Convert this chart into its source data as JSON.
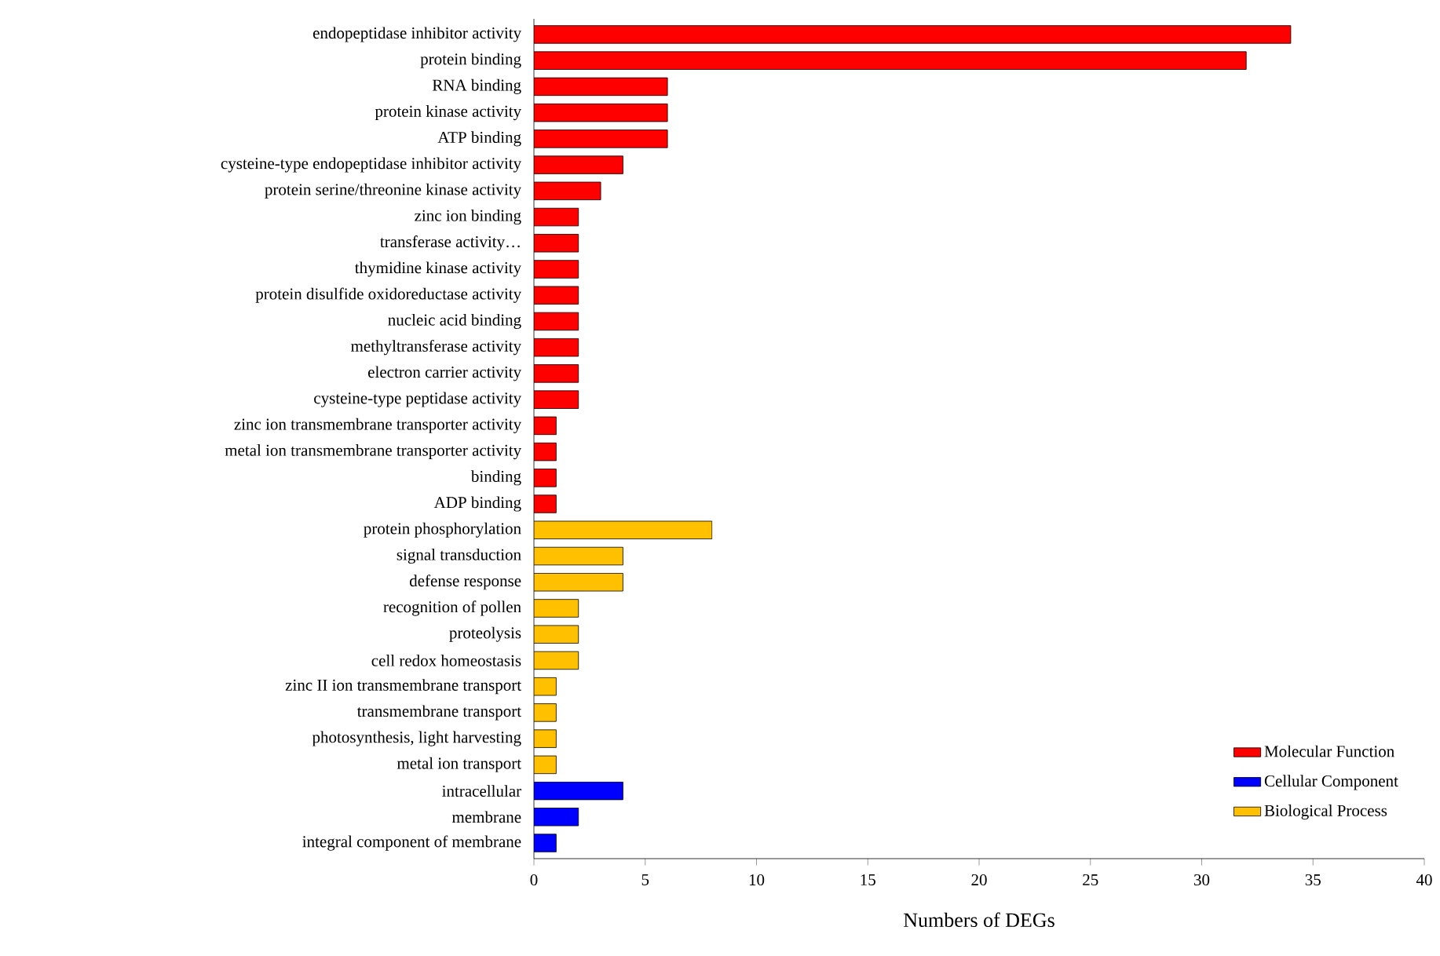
{
  "chart_data": {
    "type": "bar",
    "orientation": "horizontal",
    "xlabel": "Numbers of DEGs",
    "categories": [
      "endopeptidase inhibitor activity",
      "protein binding",
      "RNA binding",
      "protein kinase activity",
      "ATP binding",
      "cysteine-type endopeptidase inhibitor activity",
      "protein serine/threonine kinase activity",
      "zinc ion binding",
      "transferase activity…",
      "thymidine kinase activity",
      "protein disulfide oxidoreductase activity",
      "nucleic acid binding",
      "methyltransferase activity",
      "electron carrier activity",
      "cysteine-type peptidase activity",
      "zinc ion transmembrane transporter activity",
      "metal ion transmembrane transporter activity",
      "binding",
      "ADP binding",
      "protein phosphorylation",
      "signal transduction",
      "defense response",
      "recognition of pollen",
      "proteolysis",
      "cell redox homeostasis",
      "zinc II ion transmembrane transport",
      "transmembrane transport",
      "photosynthesis, light harvesting",
      "metal ion transport",
      "intracellular",
      "membrane",
      "integral component of membrane"
    ],
    "series": [
      {
        "name": "Molecular Function",
        "color": "#ff0000",
        "values": [
          34,
          32,
          6,
          6,
          6,
          4,
          3,
          2,
          2,
          2,
          2,
          2,
          2,
          2,
          2,
          1,
          1,
          1,
          1,
          null,
          null,
          null,
          null,
          null,
          null,
          null,
          null,
          null,
          null,
          null,
          null,
          null
        ]
      },
      {
        "name": "Cellular Component",
        "color": "#0000ff",
        "values": [
          null,
          null,
          null,
          null,
          null,
          null,
          null,
          null,
          null,
          null,
          null,
          null,
          null,
          null,
          null,
          null,
          null,
          null,
          null,
          null,
          null,
          null,
          null,
          null,
          null,
          null,
          null,
          null,
          null,
          4,
          2,
          1
        ]
      },
      {
        "name": "Biological Process",
        "color": "#ffc000",
        "values": [
          null,
          null,
          null,
          null,
          null,
          null,
          null,
          null,
          null,
          null,
          null,
          null,
          null,
          null,
          null,
          null,
          null,
          null,
          null,
          8,
          4,
          4,
          2,
          2,
          2,
          1,
          1,
          1,
          1,
          null,
          null,
          null
        ]
      }
    ],
    "xlim": [
      0,
      40
    ],
    "xticks": [
      0,
      5,
      10,
      15,
      20,
      25,
      30,
      35,
      40
    ],
    "legend": "bottom right"
  }
}
